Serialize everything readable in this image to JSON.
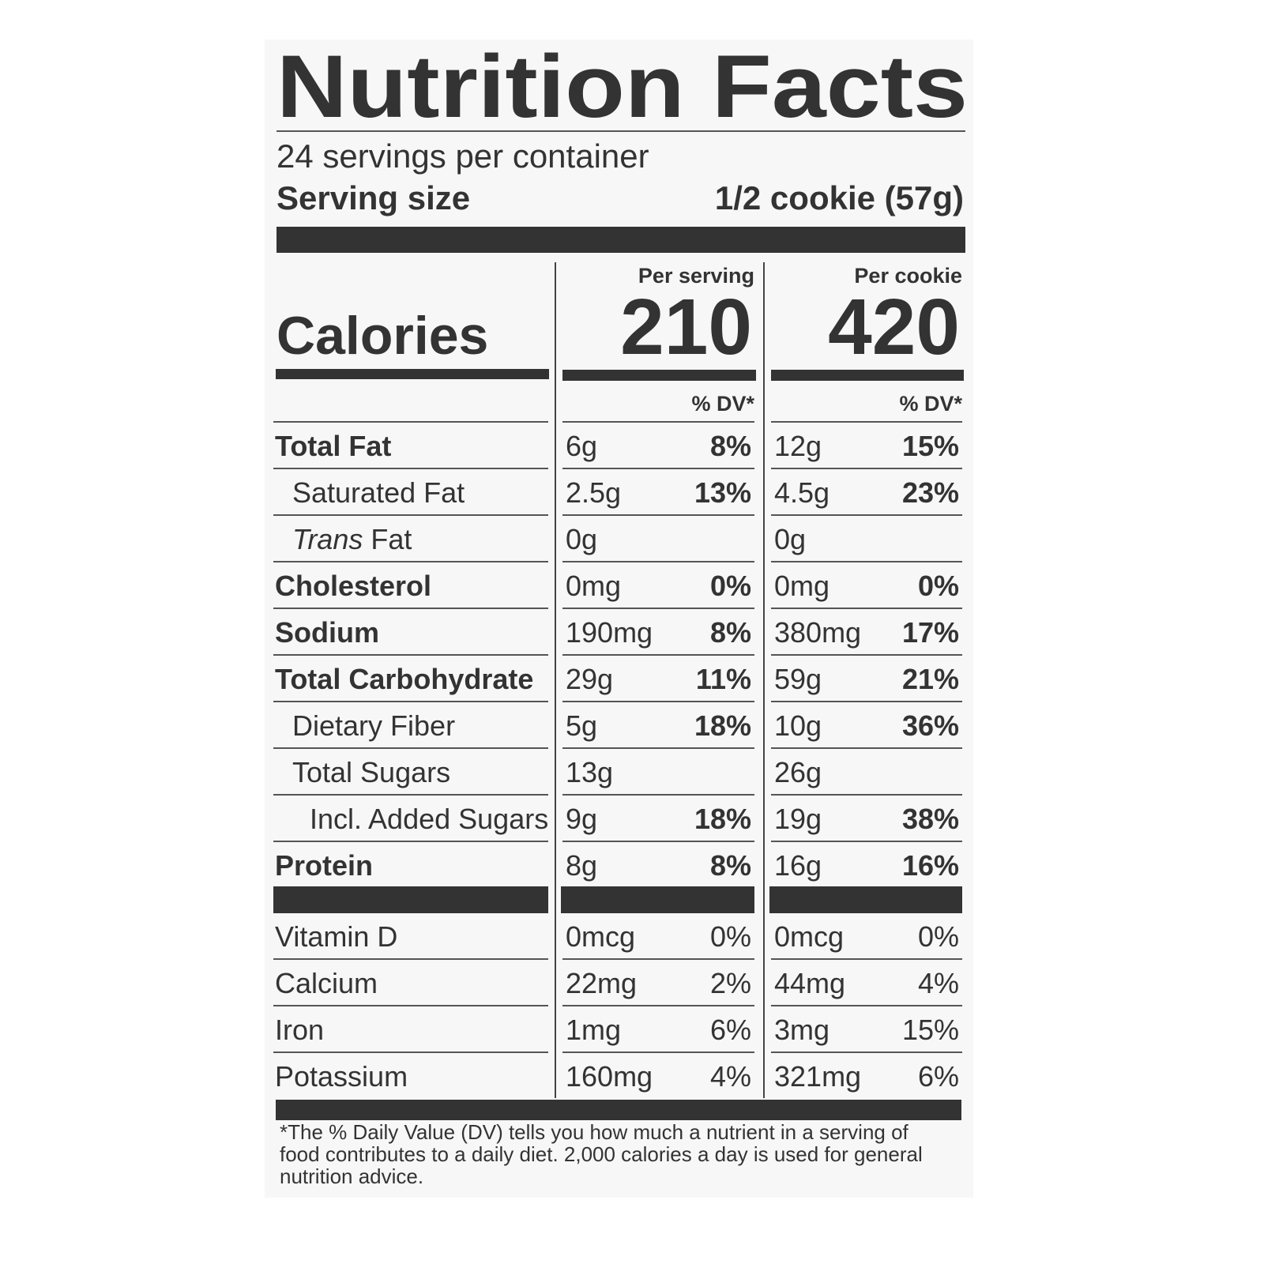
{
  "title": "Nutrition Facts",
  "servings": "24 servings per container",
  "serving_size": {
    "label": "Serving size",
    "value": "1/2 cookie (57g)"
  },
  "calories_label": "Calories",
  "columns": [
    {
      "heading": "Per serving",
      "calories": "210",
      "dv_header": "% DV*"
    },
    {
      "heading": "Per cookie",
      "calories": "420",
      "dv_header": "% DV*"
    }
  ],
  "nutrients": [
    {
      "label": "Total Fat",
      "bold": true,
      "indent": 0,
      "amounts": [
        "6g",
        "12g"
      ],
      "dv": [
        "8%",
        "15%"
      ]
    },
    {
      "label": "Saturated Fat",
      "bold": false,
      "indent": 1,
      "amounts": [
        "2.5g",
        "4.5g"
      ],
      "dv": [
        "13%",
        "23%"
      ]
    },
    {
      "label_italic": "Trans",
      "label": "Fat",
      "bold": false,
      "indent": 1,
      "amounts": [
        "0g",
        "0g"
      ],
      "dv": [
        null,
        null
      ]
    },
    {
      "label": "Cholesterol",
      "bold": true,
      "indent": 0,
      "amounts": [
        "0mg",
        "0mg"
      ],
      "dv": [
        "0%",
        "0%"
      ]
    },
    {
      "label": "Sodium",
      "bold": true,
      "indent": 0,
      "amounts": [
        "190mg",
        "380mg"
      ],
      "dv": [
        "8%",
        "17%"
      ]
    },
    {
      "label": "Total Carbohydrate",
      "bold": true,
      "indent": 0,
      "amounts": [
        "29g",
        "59g"
      ],
      "dv": [
        "11%",
        "21%"
      ]
    },
    {
      "label": "Dietary Fiber",
      "bold": false,
      "indent": 1,
      "amounts": [
        "5g",
        "10g"
      ],
      "dv": [
        "18%",
        "36%"
      ]
    },
    {
      "label": "Total Sugars",
      "bold": false,
      "indent": 1,
      "amounts": [
        "13g",
        "26g"
      ],
      "dv": [
        null,
        null
      ]
    },
    {
      "label": "Incl. Added Sugars",
      "bold": false,
      "indent": 2,
      "amounts": [
        "9g",
        "19g"
      ],
      "dv": [
        "18%",
        "38%"
      ]
    },
    {
      "label": "Protein",
      "bold": true,
      "indent": 0,
      "amounts": [
        "8g",
        "16g"
      ],
      "dv": [
        "8%",
        "16%"
      ]
    }
  ],
  "vitamins": [
    {
      "label": "Vitamin D",
      "amounts": [
        "0mcg",
        "0mcg"
      ],
      "dv": [
        "0%",
        "0%"
      ]
    },
    {
      "label": "Calcium",
      "amounts": [
        "22mg",
        "44mg"
      ],
      "dv": [
        "2%",
        "4%"
      ]
    },
    {
      "label": "Iron",
      "amounts": [
        "1mg",
        "3mg"
      ],
      "dv": [
        "6%",
        "15%"
      ]
    },
    {
      "label": "Potassium",
      "amounts": [
        "160mg",
        "321mg"
      ],
      "dv": [
        "4%",
        "6%"
      ]
    }
  ],
  "footnote": [
    "*The % Daily Value (DV) tells you how much a nutrient in a serving of",
    "food contributes to a daily diet. 2,000 calories a day is used for general",
    "nutrition advice."
  ]
}
